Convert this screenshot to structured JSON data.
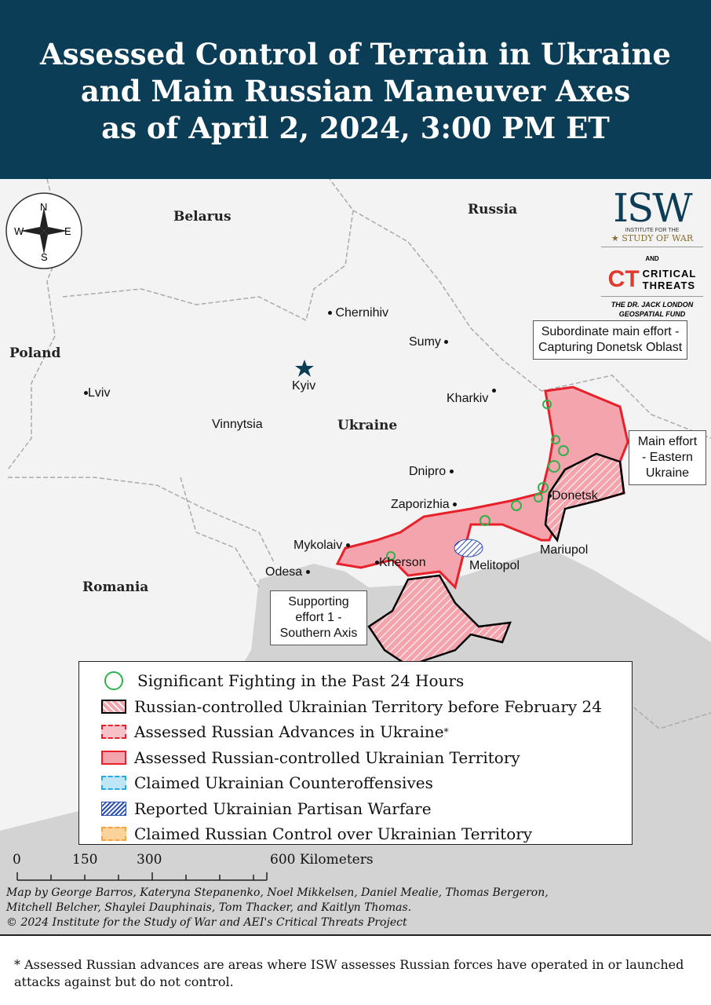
{
  "header": {
    "title_lines": [
      "Assessed Control of Terrain in Ukraine",
      "and Main Russian Maneuver Axes",
      "as of April 2, 2024, 3:00 PM ET"
    ]
  },
  "compass": {
    "n": "N",
    "s": "S",
    "e": "E",
    "w": "W"
  },
  "countries": {
    "belarus": "Belarus",
    "russia": "Russia",
    "poland": "Poland",
    "ukraine": "Ukraine",
    "romania": "Romania"
  },
  "cities": {
    "chernihiv": "Chernihiv",
    "sumy": "Sumy",
    "kyiv": "Kyiv",
    "kharkiv": "Kharkiv",
    "lviv": "Lviv",
    "vinnytsia": "Vinnytsia",
    "dnipro": "Dnipro",
    "zaporizhzhia": "Zaporizhia",
    "donetsk": "Donetsk",
    "mykolaiv": "Mykolaiv",
    "kherson": "Kherson",
    "melitopol": "Melitopol",
    "mariupol": "Mariupol",
    "odesa": "Odesa"
  },
  "callouts": {
    "subordinate": [
      "Subordinate main effort -",
      "Capturing Donetsk Oblast"
    ],
    "main": [
      "Main effort",
      "- Eastern",
      "Ukraine"
    ],
    "supporting": [
      "Supporting",
      "effort 1 -",
      "Southern Axis"
    ]
  },
  "logo": {
    "isw": "ISW",
    "isw_sub1": "INSTITUTE FOR THE",
    "isw_sub2": "STUDY OF WAR",
    "and": "AND",
    "ct": "CT",
    "ct1": "CRITICAL",
    "ct2": "THREATS",
    "fund1": "THE DR. JACK LONDON",
    "fund2": "GEOSPATIAL FUND"
  },
  "legend": [
    {
      "label": "Significant Fighting in the Past 24 Hours",
      "icon": "green-circle",
      "color": "#2db34a"
    },
    {
      "label": "Russian-controlled Ukrainian Territory before February 24",
      "icon": "hatched-black",
      "color": "#000000"
    },
    {
      "label": "Assessed Russian Advances in Ukraine",
      "sup": "*",
      "icon": "dashed-red",
      "color": "#e8202a"
    },
    {
      "label": "Assessed Russian-controlled Ukrainian Territory",
      "icon": "solid-red",
      "color": "#e8202a"
    },
    {
      "label": "Claimed Ukrainian Counteroffensives",
      "icon": "dashed-blue",
      "color": "#29a9e0"
    },
    {
      "label": "Reported Ukrainian Partisan Warfare",
      "icon": "hatched-blue",
      "color": "#2b4fb3"
    },
    {
      "label": "Claimed Russian Control over Ukrainian Territory",
      "icon": "dashed-orange",
      "color": "#f7a440"
    }
  ],
  "scale": {
    "ticks": [
      "0",
      "150",
      "300",
      "600 Kilometers"
    ]
  },
  "credits": [
    "Map by George Barros, Kateryna Stepanenko, Noel Mikkelsen, Daniel Mealie, Thomas Bergeron,",
    "Mitchell Belcher, Shaylei Dauphinais, Tom Thacker, and Kaitlyn Thomas.",
    "© 2024 Institute for the Study of War and AEI's Critical Threats Project"
  ],
  "footnote": "* Assessed Russian advances are areas where ISW assesses Russian forces have operated in or launched attacks against but do not control."
}
